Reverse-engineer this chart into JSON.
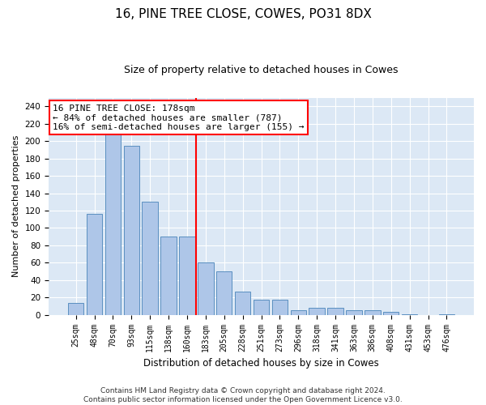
{
  "title": "16, PINE TREE CLOSE, COWES, PO31 8DX",
  "subtitle": "Size of property relative to detached houses in Cowes",
  "xlabel": "Distribution of detached houses by size in Cowes",
  "ylabel": "Number of detached properties",
  "categories": [
    "25sqm",
    "48sqm",
    "70sqm",
    "93sqm",
    "115sqm",
    "138sqm",
    "160sqm",
    "183sqm",
    "205sqm",
    "228sqm",
    "251sqm",
    "273sqm",
    "296sqm",
    "318sqm",
    "341sqm",
    "363sqm",
    "386sqm",
    "408sqm",
    "431sqm",
    "453sqm",
    "476sqm"
  ],
  "values": [
    14,
    116,
    210,
    195,
    130,
    90,
    90,
    60,
    50,
    27,
    17,
    17,
    5,
    8,
    8,
    5,
    5,
    3,
    1,
    0,
    1
  ],
  "bar_color": "#aec6e8",
  "bar_edge_color": "#5a8fc0",
  "vline_x_index": 7,
  "vline_color": "red",
  "annotation_text": "16 PINE TREE CLOSE: 178sqm\n← 84% of detached houses are smaller (787)\n16% of semi-detached houses are larger (155) →",
  "annotation_box_color": "white",
  "annotation_box_edgecolor": "red",
  "ylim": [
    0,
    250
  ],
  "yticks": [
    0,
    20,
    40,
    60,
    80,
    100,
    120,
    140,
    160,
    180,
    200,
    220,
    240
  ],
  "footer": "Contains HM Land Registry data © Crown copyright and database right 2024.\nContains public sector information licensed under the Open Government Licence v3.0.",
  "title_fontsize": 11,
  "subtitle_fontsize": 9,
  "annotation_fontsize": 8,
  "footer_fontsize": 6.5,
  "background_color": "#dce8f5",
  "plot_background": "#dce8f5"
}
